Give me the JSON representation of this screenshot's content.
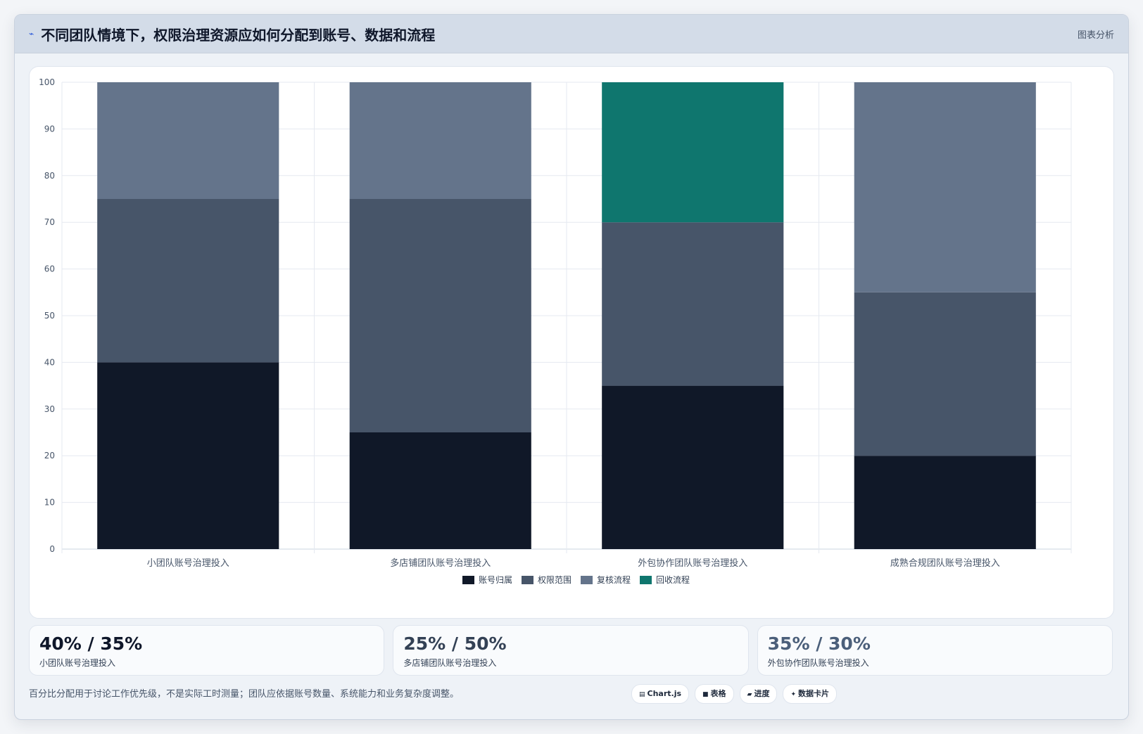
{
  "header": {
    "icon": "chart-icon",
    "title": "不同团队情境下，权限治理资源应如何分配到账号、数据和流程",
    "right_label": "图表分析"
  },
  "chart_data": {
    "type": "bar",
    "stacked": true,
    "categories": [
      "小团队账号治理投入",
      "多店铺团队账号治理投入",
      "外包协作团队账号治理投入",
      "成熟合规团队账号治理投入"
    ],
    "series": [
      {
        "name": "账号归属",
        "color": "#101828",
        "values": [
          40,
          25,
          35,
          20
        ]
      },
      {
        "name": "权限范围",
        "color": "#475569",
        "values": [
          35,
          50,
          35,
          35
        ]
      },
      {
        "name": "复核流程",
        "color": "#64748b",
        "values": [
          25,
          25,
          0,
          45
        ]
      },
      {
        "name": "回收流程",
        "color": "#0f766e",
        "values": [
          0,
          0,
          30,
          0
        ]
      }
    ],
    "ylim": [
      0,
      100
    ],
    "yticks": [
      0,
      10,
      20,
      30,
      40,
      50,
      60,
      70,
      80,
      90,
      100
    ],
    "grid": true,
    "legend": "bottom-center"
  },
  "stats": [
    {
      "value": "40% / 35%",
      "label": "小团队账号治理投入",
      "color": "#0f172a"
    },
    {
      "value": "25% / 50%",
      "label": "多店铺团队账号治理投入",
      "color": "#334155"
    },
    {
      "value": "35% / 30%",
      "label": "外包协作团队账号治理投入",
      "color": "#4b5f7a"
    }
  ],
  "footer": {
    "note": "百分比分配用于讨论工作优先级，不是实际工时测量；团队应依据账号数量、系统能力和业务复杂度调整。",
    "pills": [
      {
        "icon": "chart-icon",
        "glyph": "▤",
        "label": "Chart.js"
      },
      {
        "icon": "table-icon",
        "glyph": "■",
        "label": "表格"
      },
      {
        "icon": "progress-icon",
        "glyph": "▰",
        "label": "进度"
      },
      {
        "icon": "datacard-icon",
        "glyph": "✦",
        "label": "数据卡片"
      }
    ]
  }
}
